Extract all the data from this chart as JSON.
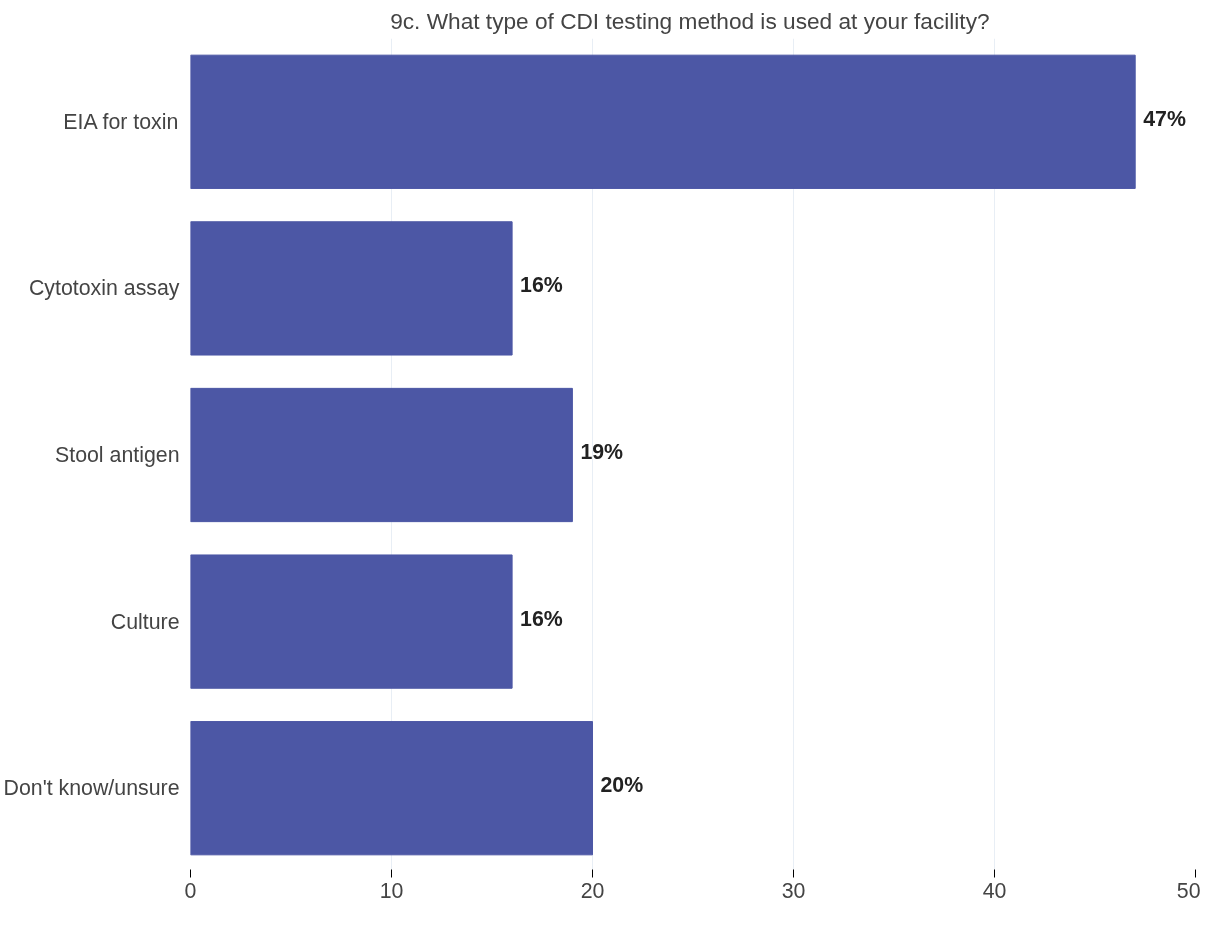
{
  "chart_data": {
    "type": "bar",
    "orientation": "horizontal",
    "title": "9c.  What type of CDI testing method is used at your facility?",
    "categories": [
      "EIA for toxin",
      "Cytotoxin assay",
      "Stool antigen",
      "Culture",
      "Don't know/unsure"
    ],
    "values": [
      47,
      16,
      19,
      16,
      20
    ],
    "value_labels": [
      "47%",
      "16%",
      "19%",
      "16%",
      "20%"
    ],
    "color": "#4c57a5",
    "xlim": [
      0,
      50
    ],
    "xticks": [
      0,
      10,
      20,
      30,
      40,
      50
    ],
    "grid": "x"
  }
}
